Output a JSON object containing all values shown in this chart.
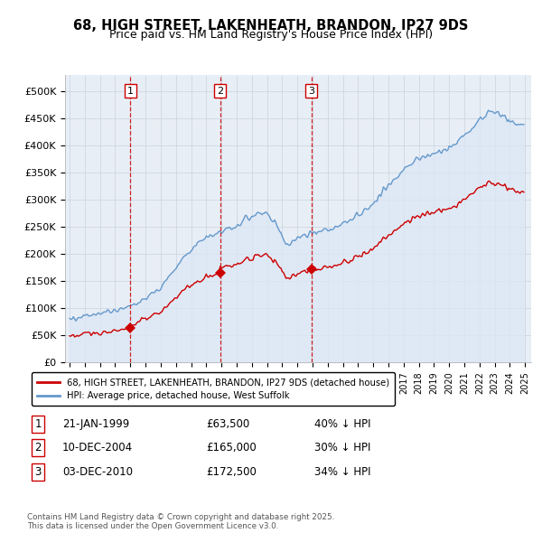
{
  "title": "68, HIGH STREET, LAKENHEATH, BRANDON, IP27 9DS",
  "subtitle": "Price paid vs. HM Land Registry's House Price Index (HPI)",
  "ylabel_vals": [
    "£0",
    "£50K",
    "£100K",
    "£150K",
    "£200K",
    "£250K",
    "£300K",
    "£350K",
    "£400K",
    "£450K",
    "£500K"
  ],
  "ylim": [
    0,
    530000
  ],
  "yticks": [
    0,
    50000,
    100000,
    150000,
    200000,
    250000,
    300000,
    350000,
    400000,
    450000,
    500000
  ],
  "sale_prices": [
    63500,
    165000,
    172500
  ],
  "sale_labels": [
    "1",
    "2",
    "3"
  ],
  "sale_pct": [
    "40% ↓ HPI",
    "30% ↓ HPI",
    "34% ↓ HPI"
  ],
  "sale_date_strs": [
    "21-JAN-1999",
    "10-DEC-2004",
    "03-DEC-2010"
  ],
  "sale_price_strs": [
    "£63,500",
    "£165,000",
    "£172,500"
  ],
  "red_line_color": "#cc0000",
  "blue_line_color": "#6699cc",
  "blue_fill_color": "#dce8f5",
  "vline_color": "#cc0000",
  "background_color": "#ffffff",
  "grid_color": "#c8d4e0",
  "legend_label_red": "68, HIGH STREET, LAKENHEATH, BRANDON, IP27 9DS (detached house)",
  "legend_label_blue": "HPI: Average price, detached house, West Suffolk",
  "footer_text": "Contains HM Land Registry data © Crown copyright and database right 2025.\nThis data is licensed under the Open Government Licence v3.0."
}
